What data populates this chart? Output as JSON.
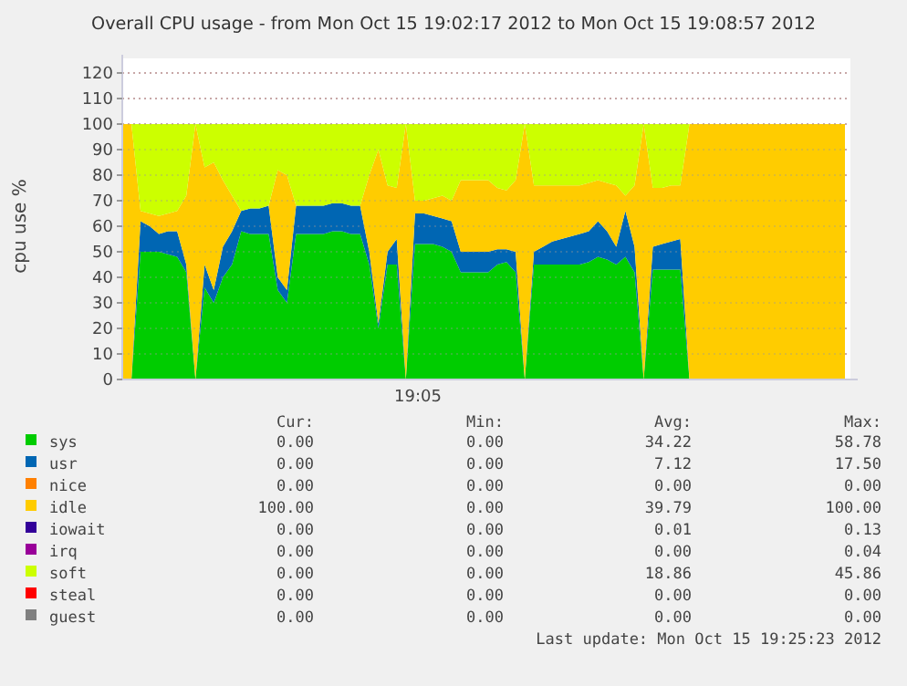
{
  "chart_data": {
    "type": "area",
    "stacked": true,
    "title": "Overall CPU usage - from Mon Oct 15 19:02:17 2012 to Mon Oct 15 19:08:57 2012",
    "ylabel": "cpu use %",
    "categories": [
      null,
      null,
      null,
      null,
      null,
      null,
      null,
      null,
      null,
      null,
      null,
      null,
      null,
      null,
      null,
      null,
      null,
      null,
      null,
      null,
      null,
      null,
      null,
      null,
      null,
      null,
      null,
      null,
      null,
      null,
      null,
      null,
      null,
      null,
      null,
      null,
      null,
      null,
      null,
      null,
      null,
      null,
      null,
      null,
      null,
      null,
      null,
      null,
      null,
      null,
      null,
      null,
      null,
      null,
      null,
      null,
      null,
      null,
      null,
      null,
      null,
      null,
      null,
      null,
      null,
      null,
      null,
      null,
      null,
      null,
      null,
      null,
      null,
      null,
      null,
      null,
      null,
      null,
      null,
      null
    ],
    "series": [
      {
        "name": "sys",
        "color": "#00cc00",
        "values": [
          0,
          0,
          50,
          50,
          50,
          49,
          48,
          42,
          0,
          36,
          30,
          40,
          45,
          58,
          57,
          57,
          57,
          35,
          30,
          57,
          57,
          57,
          57,
          58,
          58,
          57,
          57,
          45,
          20,
          45,
          45,
          0,
          53,
          53,
          53,
          52,
          50,
          42,
          42,
          42,
          42,
          45,
          46,
          42,
          0,
          45,
          45,
          45,
          45,
          45,
          45,
          46,
          48,
          47,
          45,
          48,
          42,
          0,
          43,
          43,
          43,
          43,
          0,
          0,
          0,
          0,
          0,
          0,
          0,
          0,
          0,
          0,
          0,
          0,
          0,
          0,
          0,
          0,
          0,
          0
        ]
      },
      {
        "name": "usr",
        "color": "#0066b3",
        "values": [
          0,
          0,
          12,
          10,
          7,
          9,
          10,
          3,
          0,
          9,
          5,
          12,
          13,
          8,
          10,
          10,
          11,
          5,
          5,
          11,
          11,
          11,
          11,
          11,
          11,
          11,
          11,
          5,
          2,
          5,
          10,
          0,
          12,
          12,
          11,
          11,
          12,
          8,
          8,
          8,
          8,
          6,
          5,
          8,
          0,
          5,
          7,
          9,
          10,
          11,
          12,
          12,
          14,
          11,
          7,
          18,
          10,
          0,
          9,
          10,
          11,
          12,
          0,
          0,
          0,
          0,
          0,
          0,
          0,
          0,
          0,
          0,
          0,
          0,
          0,
          0,
          0,
          0,
          0,
          0
        ]
      },
      {
        "name": "nice",
        "color": "#ff8000",
        "values": [
          null,
          null,
          null,
          null,
          null,
          null,
          null,
          null,
          null,
          null,
          null,
          null,
          null,
          null,
          null,
          null,
          null,
          null,
          null,
          null,
          null,
          null,
          null,
          null,
          null,
          null,
          null,
          null,
          null,
          null,
          null,
          null,
          null,
          null,
          null,
          null,
          null,
          null,
          null,
          null,
          null,
          null,
          null,
          null,
          null,
          null,
          null,
          null,
          null,
          null,
          null,
          null,
          null,
          null,
          null,
          null,
          null,
          null,
          null,
          null,
          null,
          null,
          null,
          null,
          null,
          null,
          null,
          null,
          null,
          null,
          null,
          null,
          null,
          null,
          null,
          null,
          null,
          null,
          null,
          null
        ]
      },
      {
        "name": "idle",
        "color": "#ffcc00",
        "values": [
          100,
          100,
          4,
          5,
          7,
          7,
          8,
          27,
          100,
          38,
          50,
          26,
          14,
          0,
          0,
          0,
          0,
          42,
          45,
          0,
          0,
          0,
          0,
          0,
          0,
          0,
          0,
          30,
          68,
          26,
          20,
          100,
          5,
          5,
          7,
          9,
          8,
          28,
          28,
          28,
          28,
          24,
          23,
          28,
          100,
          26,
          24,
          22,
          21,
          20,
          19,
          19,
          16,
          19,
          24,
          6,
          24,
          100,
          23,
          22,
          22,
          21,
          100,
          100,
          100,
          100,
          100,
          100,
          100,
          100,
          100,
          100,
          100,
          100,
          100,
          100,
          100,
          100,
          100,
          100
        ]
      },
      {
        "name": "iowait",
        "color": "#330099",
        "values": [
          null,
          null,
          null,
          null,
          null,
          null,
          null,
          null,
          null,
          null,
          null,
          null,
          null,
          null,
          null,
          null,
          null,
          null,
          null,
          null,
          null,
          null,
          null,
          null,
          null,
          null,
          null,
          null,
          null,
          null,
          null,
          null,
          null,
          null,
          null,
          null,
          null,
          null,
          null,
          null,
          null,
          null,
          null,
          null,
          null,
          null,
          null,
          null,
          null,
          null,
          null,
          null,
          null,
          null,
          null,
          null,
          null,
          null,
          null,
          null,
          null,
          null,
          null,
          null,
          null,
          null,
          null,
          null,
          null,
          null,
          null,
          null,
          null,
          null,
          null,
          null,
          null,
          null,
          null,
          null
        ]
      },
      {
        "name": "irq",
        "color": "#990099",
        "values": [
          null,
          null,
          null,
          null,
          null,
          null,
          null,
          null,
          null,
          null,
          null,
          null,
          null,
          null,
          null,
          null,
          null,
          null,
          null,
          null,
          null,
          null,
          null,
          null,
          null,
          null,
          null,
          null,
          null,
          null,
          null,
          null,
          null,
          null,
          null,
          null,
          null,
          null,
          null,
          null,
          null,
          null,
          null,
          null,
          null,
          null,
          null,
          null,
          null,
          null,
          null,
          null,
          null,
          null,
          null,
          null,
          null,
          null,
          null,
          null,
          null,
          null,
          null,
          null,
          null,
          null,
          null,
          null,
          null,
          null,
          null,
          null,
          null,
          null,
          null,
          null,
          null,
          null,
          null,
          null
        ]
      },
      {
        "name": "soft",
        "color": "#ccff00",
        "values": [
          0,
          0,
          34,
          35,
          36,
          35,
          34,
          28,
          0,
          17,
          15,
          22,
          28,
          34,
          33,
          33,
          32,
          18,
          20,
          32,
          32,
          32,
          32,
          31,
          31,
          32,
          32,
          20,
          10,
          24,
          25,
          0,
          30,
          30,
          29,
          28,
          30,
          22,
          22,
          22,
          22,
          25,
          26,
          22,
          0,
          24,
          24,
          24,
          24,
          24,
          24,
          23,
          22,
          23,
          24,
          28,
          24,
          0,
          25,
          25,
          24,
          24,
          0,
          0,
          0,
          0,
          0,
          0,
          0,
          0,
          0,
          0,
          0,
          0,
          0,
          0,
          0,
          0,
          0,
          0
        ]
      },
      {
        "name": "steal",
        "color": "#ff0000",
        "values": [
          null,
          null,
          null,
          null,
          null,
          null,
          null,
          null,
          null,
          null,
          null,
          null,
          null,
          null,
          null,
          null,
          null,
          null,
          null,
          null,
          null,
          null,
          null,
          null,
          null,
          null,
          null,
          null,
          null,
          null,
          null,
          null,
          null,
          null,
          null,
          null,
          null,
          null,
          null,
          null,
          null,
          null,
          null,
          null,
          null,
          null,
          null,
          null,
          null,
          null,
          null,
          null,
          null,
          null,
          null,
          null,
          null,
          null,
          null,
          null,
          null,
          null,
          null,
          null,
          null,
          null,
          null,
          null,
          null,
          null,
          null,
          null,
          null,
          null,
          null,
          null,
          null,
          null,
          null,
          null
        ]
      },
      {
        "name": "guest",
        "color": "#808080",
        "values": [
          null,
          null,
          null,
          null,
          null,
          null,
          null,
          null,
          null,
          null,
          null,
          null,
          null,
          null,
          null,
          null,
          null,
          null,
          null,
          null,
          null,
          null,
          null,
          null,
          null,
          null,
          null,
          null,
          null,
          null,
          null,
          null,
          null,
          null,
          null,
          null,
          null,
          null,
          null,
          null,
          null,
          null,
          null,
          null,
          null,
          null,
          null,
          null,
          null,
          null,
          null,
          null,
          null,
          null,
          null,
          null,
          null,
          null,
          null,
          null,
          null,
          null,
          null,
          null,
          null,
          null,
          null,
          null,
          null,
          null,
          null,
          null,
          null,
          null,
          null,
          null,
          null,
          null,
          null,
          null
        ]
      }
    ],
    "ylim": [
      0,
      120
    ],
    "yticks": [
      0,
      10,
      20,
      30,
      40,
      50,
      60,
      70,
      80,
      90,
      100,
      110,
      120
    ],
    "grid": "y",
    "legend": "bottom left",
    "annotations": [
      "19:05",
      "Cur:",
      "Min:",
      "Avg:",
      "Max:",
      "0.00",
      "0.00",
      "34.22",
      "58.78",
      "0.00",
      "0.00",
      "7.12",
      "17.50",
      "0.00",
      "0.00",
      "0.00",
      "0.00",
      "100.00",
      "0.00",
      "39.79",
      "100.00",
      "0.00",
      "0.00",
      "0.01",
      "0.13",
      "0.00",
      "0.00",
      "0.00",
      "0.04",
      "0.00",
      "0.00",
      "18.86",
      "45.86",
      "0.00",
      "0.00",
      "0.00",
      "0.00",
      "0.00",
      "0.00",
      "0.00",
      "0.00",
      "Last update: Mon Oct 15 19:25:23 2012"
    ]
  }
}
